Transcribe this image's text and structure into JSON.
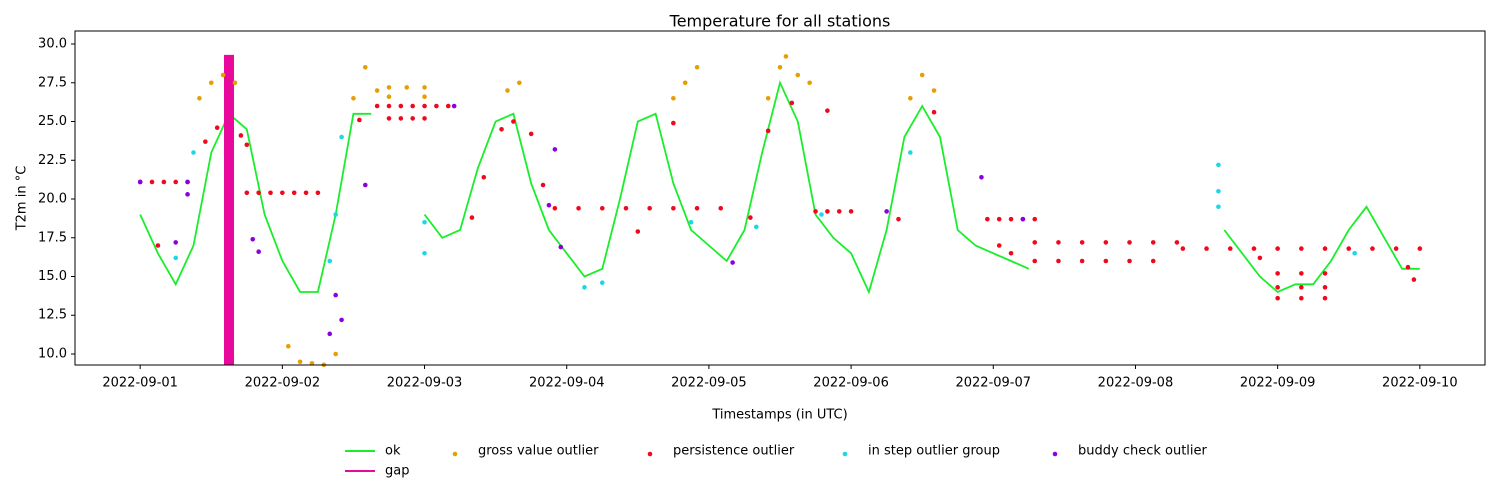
{
  "chart_data": {
    "type": "line",
    "title": "Temperature for all stations",
    "x_label": "Timestamps (in UTC)",
    "y_label": "T2m in °C",
    "xlim": [
      "2022-08-31T13:00",
      "2022-09-10T11:00"
    ],
    "xticks": [
      "2022-09-01",
      "2022-09-02",
      "2022-09-03",
      "2022-09-04",
      "2022-09-05",
      "2022-09-06",
      "2022-09-07",
      "2022-09-08",
      "2022-09-09",
      "2022-09-10"
    ],
    "ylim": [
      9.29,
      30.84
    ],
    "yticks": [
      {
        "value": 10,
        "label": "10.0"
      },
      12.5,
      {
        "value": 15,
        "label": "15.0"
      },
      17.5,
      {
        "value": 20,
        "label": "20.0"
      },
      22.5,
      {
        "value": 25,
        "label": "25.0"
      },
      27.5,
      {
        "value": 30,
        "label": "30.0"
      }
    ],
    "legend": "lower center",
    "series": [
      {
        "name": "ok",
        "type": "line",
        "color": "#1aee2a",
        "linewidth": 1.8,
        "x": [
          "2022-09-01T00:00",
          "2022-09-01T03:00",
          "2022-09-01T06:00",
          "2022-09-01T09:00",
          "2022-09-01T12:00",
          "2022-09-01T15:00",
          "2022-09-01T18:00",
          "2022-09-01T21:00",
          "2022-09-02T00:00",
          "2022-09-02T03:00",
          "2022-09-02T06:00",
          "2022-09-02T09:00",
          "2022-09-02T12:00",
          "2022-09-02T15:00",
          "2022-09-02T18:00",
          "2022-09-02T21:00",
          "2022-09-03T00:00",
          "2022-09-03T03:00",
          "2022-09-03T06:00",
          "2022-09-03T09:00",
          "2022-09-03T12:00",
          "2022-09-03T15:00",
          "2022-09-03T18:00",
          "2022-09-03T21:00",
          "2022-09-04T00:00",
          "2022-09-04T03:00",
          "2022-09-04T06:00",
          "2022-09-04T09:00",
          "2022-09-04T12:00",
          "2022-09-04T15:00",
          "2022-09-04T18:00",
          "2022-09-04T21:00",
          "2022-09-05T00:00",
          "2022-09-05T03:00",
          "2022-09-05T06:00",
          "2022-09-05T09:00",
          "2022-09-05T12:00",
          "2022-09-05T15:00",
          "2022-09-05T18:00",
          "2022-09-05T21:00",
          "2022-09-06T00:00",
          "2022-09-06T03:00",
          "2022-09-06T06:00",
          "2022-09-06T09:00",
          "2022-09-06T12:00",
          "2022-09-06T15:00",
          "2022-09-06T18:00",
          "2022-09-06T21:00",
          "2022-09-07T00:00",
          "2022-09-07T03:00",
          "2022-09-07T06:00",
          "2022-09-07T09:00",
          "2022-09-07T12:00",
          "2022-09-07T15:00",
          "2022-09-07T18:00",
          "2022-09-07T21:00",
          "2022-09-08T00:00",
          "2022-09-08T03:00",
          "2022-09-08T06:00",
          "2022-09-08T09:00",
          "2022-09-08T12:00",
          "2022-09-08T15:00",
          "2022-09-08T18:00",
          "2022-09-08T21:00",
          "2022-09-09T00:00",
          "2022-09-09T03:00",
          "2022-09-09T06:00",
          "2022-09-09T09:00",
          "2022-09-09T12:00",
          "2022-09-09T15:00",
          "2022-09-09T18:00",
          "2022-09-09T21:00",
          "2022-09-10T00:00"
        ],
        "values": [
          19,
          16.5,
          14.5,
          17,
          23,
          25.5,
          24.5,
          19,
          16,
          14,
          14,
          19,
          25.5,
          25.5,
          null,
          null,
          19,
          17.5,
          18,
          22,
          25,
          25.5,
          21,
          18,
          16.5,
          15,
          15.5,
          20,
          25,
          25.5,
          21,
          18,
          17,
          16,
          18,
          23,
          27.5,
          25,
          19,
          17.5,
          16.5,
          14,
          18,
          24,
          26,
          24,
          18,
          17,
          16.5,
          16,
          15.5,
          null,
          null,
          null,
          null,
          null,
          null,
          null,
          null,
          null,
          null,
          18,
          16.5,
          15,
          14,
          14.5,
          14.5,
          16,
          18,
          19.5,
          17.5,
          15.5,
          15.5
        ]
      },
      {
        "name": "gap",
        "type": "line",
        "color": "#e8089c",
        "linewidth": 10,
        "x": [
          "2022-09-01T15:00",
          "2022-09-01T15:00"
        ],
        "values": [
          9.3,
          29.3
        ]
      },
      {
        "name": "gross value outlier",
        "type": "scatter",
        "color": "#e69f00",
        "x": [
          "2022-09-01T10:00",
          "2022-09-01T12:00",
          "2022-09-01T14:00",
          "2022-09-01T16:00",
          "2022-09-02T01:00",
          "2022-09-02T03:00",
          "2022-09-02T05:00",
          "2022-09-02T07:00",
          "2022-09-02T09:00",
          "2022-09-02T12:00",
          "2022-09-02T14:00",
          "2022-09-02T16:00",
          "2022-09-02T18:00",
          "2022-09-02T21:00",
          "2022-09-03T00:00",
          "2022-09-02T18:00",
          "2022-09-03T00:00",
          "2022-09-03T14:00",
          "2022-09-03T16:00",
          "2022-09-04T18:00",
          "2022-09-04T20:00",
          "2022-09-04T22:00",
          "2022-09-05T10:00",
          "2022-09-05T12:00",
          "2022-09-05T13:00",
          "2022-09-05T15:00",
          "2022-09-05T17:00",
          "2022-09-06T10:00",
          "2022-09-06T12:00",
          "2022-09-06T14:00"
        ],
        "values": [
          26.5,
          27.5,
          28,
          27.5,
          10.5,
          9.5,
          9.4,
          9.3,
          10,
          26.5,
          28.5,
          27,
          27.2,
          27.2,
          27.2,
          26.6,
          26.6,
          27,
          27.5,
          26.5,
          27.5,
          28.5,
          26.5,
          28.5,
          29.2,
          28,
          27.5,
          26.5,
          28,
          27
        ]
      },
      {
        "name": "persistence outlier",
        "type": "scatter",
        "color": "#f0081e",
        "x": [
          "2022-09-01T00:00",
          "2022-09-01T02:00",
          "2022-09-01T04:00",
          "2022-09-01T06:00",
          "2022-09-01T08:00",
          "2022-09-01T18:00",
          "2022-09-01T20:00",
          "2022-09-01T22:00",
          "2022-09-02T00:00",
          "2022-09-02T02:00",
          "2022-09-02T04:00",
          "2022-09-02T06:00",
          "2022-09-02T16:00",
          "2022-09-02T18:00",
          "2022-09-02T20:00",
          "2022-09-02T22:00",
          "2022-09-03T00:00",
          "2022-09-03T02:00",
          "2022-09-03T04:00",
          "2022-09-02T18:00",
          "2022-09-02T20:00",
          "2022-09-02T22:00",
          "2022-09-03T00:00",
          "2022-09-03T22:00",
          "2022-09-04T02:00",
          "2022-09-04T06:00",
          "2022-09-04T10:00",
          "2022-09-04T14:00",
          "2022-09-04T18:00",
          "2022-09-04T22:00",
          "2022-09-05T02:00",
          "2022-09-05T18:00",
          "2022-09-05T20:00",
          "2022-09-05T22:00",
          "2022-09-06T00:00",
          "2022-09-06T23:00",
          "2022-09-07T01:00",
          "2022-09-07T03:00",
          "2022-09-07T05:00",
          "2022-09-07T07:00",
          "2022-09-07T07:00",
          "2022-09-07T11:00",
          "2022-09-07T15:00",
          "2022-09-07T19:00",
          "2022-09-07T23:00",
          "2022-09-08T03:00",
          "2022-09-08T07:00",
          "2022-09-07T07:00",
          "2022-09-07T11:00",
          "2022-09-07T15:00",
          "2022-09-07T19:00",
          "2022-09-07T23:00",
          "2022-09-08T03:00",
          "2022-09-08T08:00",
          "2022-09-08T12:00",
          "2022-09-08T16:00",
          "2022-09-08T20:00",
          "2022-09-09T00:00",
          "2022-09-09T04:00",
          "2022-09-09T08:00",
          "2022-09-09T12:00",
          "2022-09-09T16:00",
          "2022-09-09T20:00",
          "2022-09-10T00:00",
          "2022-09-09T00:00",
          "2022-09-09T04:00",
          "2022-09-09T08:00",
          "2022-09-09T00:00",
          "2022-09-09T04:00",
          "2022-09-09T08:00",
          "2022-09-09T00:00",
          "2022-09-09T04:00",
          "2022-09-09T08:00",
          "2022-09-01T03:00",
          "2022-09-01T11:00",
          "2022-09-01T13:00",
          "2022-09-01T17:00",
          "2022-09-01T18:00",
          "2022-09-02T13:00",
          "2022-09-03T08:00",
          "2022-09-03T10:00",
          "2022-09-03T13:00",
          "2022-09-03T15:00",
          "2022-09-03T18:00",
          "2022-09-03T20:00",
          "2022-09-04T12:00",
          "2022-09-04T18:00",
          "2022-09-05T07:00",
          "2022-09-05T10:00",
          "2022-09-05T14:00",
          "2022-09-05T20:00",
          "2022-09-06T08:00",
          "2022-09-06T14:00",
          "2022-09-07T01:00",
          "2022-09-07T03:00",
          "2022-09-08T21:00",
          "2022-09-09T22:00",
          "2022-09-09T23:00"
        ],
        "values": [
          21.1,
          21.1,
          21.1,
          21.1,
          21.1,
          20.4,
          20.4,
          20.4,
          20.4,
          20.4,
          20.4,
          20.4,
          26,
          26,
          26,
          26,
          26,
          26,
          26,
          25.2,
          25.2,
          25.2,
          25.2,
          19.4,
          19.4,
          19.4,
          19.4,
          19.4,
          19.4,
          19.4,
          19.4,
          19.2,
          19.2,
          19.2,
          19.2,
          18.7,
          18.7,
          18.7,
          18.7,
          18.7,
          17.2,
          17.2,
          17.2,
          17.2,
          17.2,
          17.2,
          17.2,
          16,
          16,
          16,
          16,
          16,
          16,
          16.8,
          16.8,
          16.8,
          16.8,
          16.8,
          16.8,
          16.8,
          16.8,
          16.8,
          16.8,
          16.8,
          15.2,
          15.2,
          15.2,
          14.3,
          14.3,
          14.3,
          13.6,
          13.6,
          13.6,
          17,
          23.7,
          24.6,
          24.1,
          23.5,
          25.1,
          18.8,
          21.4,
          24.5,
          25,
          24.2,
          20.9,
          17.9,
          24.9,
          18.8,
          24.4,
          26.2,
          25.7,
          18.7,
          25.6,
          17,
          16.5,
          16.2,
          15.6,
          14.8
        ]
      },
      {
        "name": "in step outlier group",
        "type": "scatter",
        "color": "#1ad8e8",
        "x": [
          "2022-09-01T06:00",
          "2022-09-01T09:00",
          "2022-09-02T08:00",
          "2022-09-02T10:00",
          "2022-09-02T09:00",
          "2022-09-03T00:00",
          "2022-09-03T00:00",
          "2022-09-04T03:00",
          "2022-09-04T06:00",
          "2022-09-04T21:00",
          "2022-09-05T08:00",
          "2022-09-05T19:00",
          "2022-09-06T10:00",
          "2022-09-08T14:00",
          "2022-09-08T14:00",
          "2022-09-08T14:00",
          "2022-09-09T13:00"
        ],
        "values": [
          16.2,
          23,
          16,
          24,
          19,
          18.5,
          16.5,
          14.3,
          14.6,
          18.5,
          18.2,
          19,
          23,
          22.2,
          20.5,
          19.5,
          16.5
        ]
      },
      {
        "name": "buddy check outlier",
        "type": "scatter",
        "color": "#8a00e0",
        "x": [
          "2022-09-01T00:00",
          "2022-09-01T08:00",
          "2022-09-01T08:00",
          "2022-09-01T06:00",
          "2022-09-01T19:00",
          "2022-09-01T20:00",
          "2022-09-02T08:00",
          "2022-09-02T09:00",
          "2022-09-02T10:00",
          "2022-09-02T14:00",
          "2022-09-03T05:00",
          "2022-09-03T22:00",
          "2022-09-03T23:00",
          "2022-09-03T21:00",
          "2022-09-05T04:00",
          "2022-09-06T06:00",
          "2022-09-06T22:00",
          "2022-09-07T05:00"
        ],
        "values": [
          21.1,
          21.1,
          20.3,
          17.2,
          17.4,
          16.6,
          11.3,
          13.8,
          12.2,
          20.9,
          26,
          23.2,
          16.9,
          19.6,
          15.9,
          19.2,
          21.4,
          18.7
        ]
      }
    ]
  }
}
